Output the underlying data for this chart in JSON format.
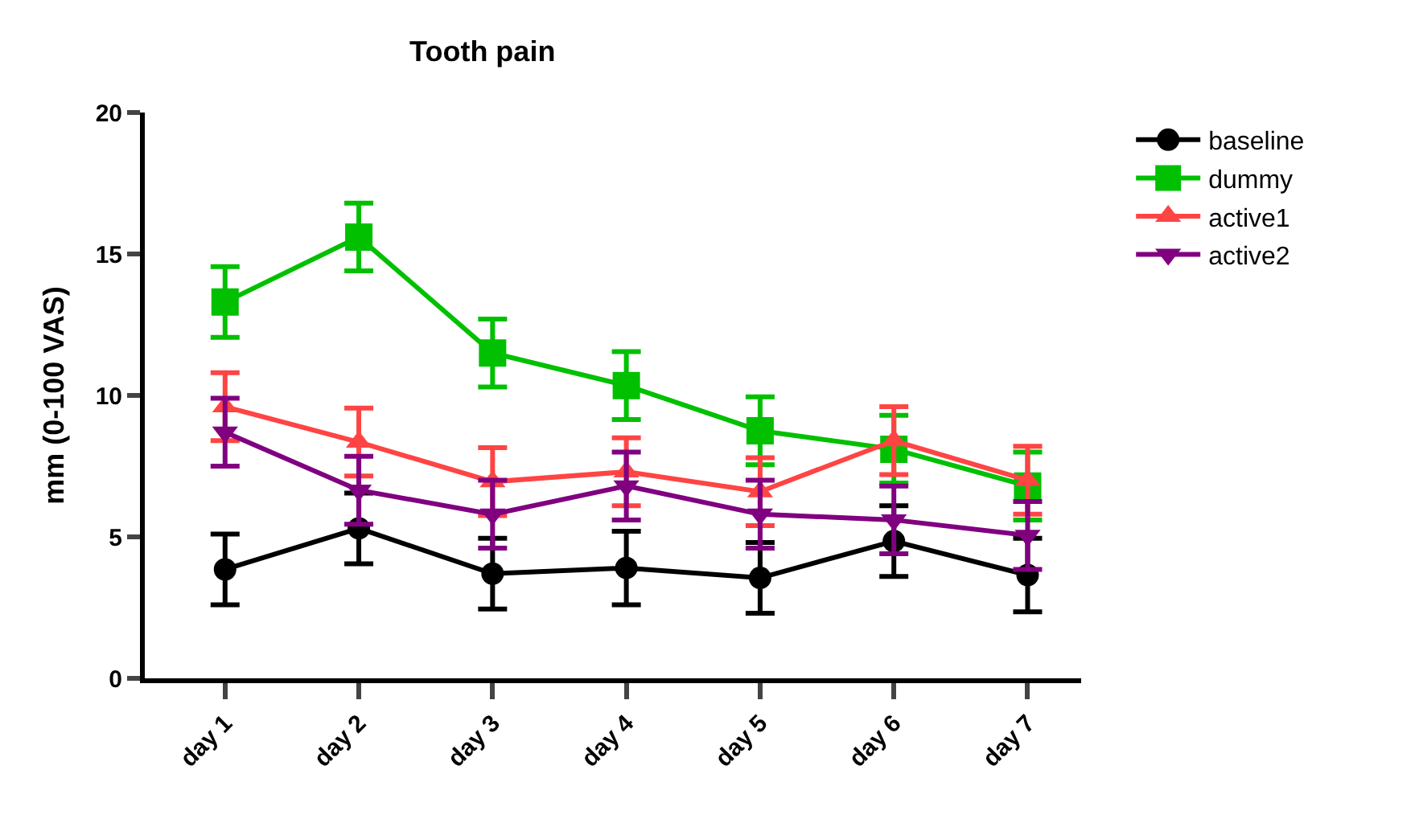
{
  "chart_data": {
    "type": "line",
    "title": "Tooth pain",
    "ylabel": "mm (0-100 VAS)",
    "categories": [
      "day 1",
      "day 2",
      "day 3",
      "day 4",
      "day 5",
      "day 6",
      "day 7"
    ],
    "ylim": [
      0,
      20
    ],
    "yticks": [
      0,
      5,
      10,
      15,
      20
    ],
    "legend": "right",
    "series": [
      {
        "name": "baseline",
        "color": "#000000",
        "marker": "circle",
        "values": [
          3.85,
          5.3,
          3.7,
          3.9,
          3.55,
          4.85,
          3.65
        ],
        "errors": [
          1.25,
          1.25,
          1.25,
          1.3,
          1.25,
          1.25,
          1.3
        ]
      },
      {
        "name": "dummy",
        "color": "#00c000",
        "marker": "square",
        "values": [
          13.3,
          15.6,
          11.5,
          10.35,
          8.75,
          8.1,
          6.8
        ],
        "errors": [
          1.25,
          1.2,
          1.2,
          1.2,
          1.2,
          1.2,
          1.2
        ]
      },
      {
        "name": "active1",
        "color": "#ff4444",
        "marker": "triangle",
        "values": [
          9.6,
          8.35,
          6.95,
          7.3,
          6.6,
          8.4,
          7.0
        ],
        "errors": [
          1.2,
          1.2,
          1.2,
          1.2,
          1.2,
          1.2,
          1.2
        ]
      },
      {
        "name": "active2",
        "color": "#800080",
        "marker": "triangle-down",
        "values": [
          8.7,
          6.65,
          5.8,
          6.8,
          5.8,
          5.6,
          5.05
        ],
        "errors": [
          1.2,
          1.2,
          1.2,
          1.2,
          1.2,
          1.2,
          1.2
        ]
      }
    ]
  }
}
